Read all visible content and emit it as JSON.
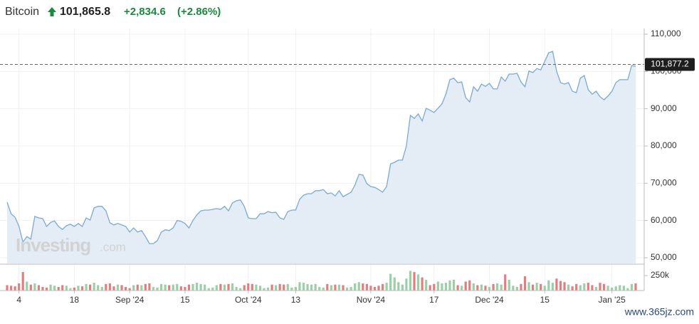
{
  "chart_data": {
    "type": "area",
    "title": "Bitcoin",
    "price": "101,865.8",
    "change": "+2,834.6",
    "change_pct": "(+2.86%)",
    "watermark_brand": "Investing",
    "watermark_suffix": ".com",
    "site_watermark": "www.365jz.com",
    "categories": [
      null,
      null,
      null,
      "4",
      null,
      null,
      null,
      null,
      null,
      null,
      null,
      null,
      null,
      null,
      null,
      null,
      null,
      "18",
      null,
      null,
      null,
      null,
      null,
      null,
      null,
      null,
      null,
      null,
      null,
      null,
      null,
      "Sep '24",
      null,
      null,
      null,
      null,
      null,
      null,
      null,
      null,
      null,
      null,
      null,
      null,
      null,
      "15",
      null,
      null,
      null,
      null,
      null,
      null,
      null,
      null,
      null,
      null,
      null,
      null,
      null,
      null,
      null,
      "Oct '24",
      null,
      null,
      null,
      null,
      null,
      null,
      null,
      null,
      null,
      null,
      null,
      "13",
      null,
      null,
      null,
      null,
      null,
      null,
      null,
      null,
      null,
      null,
      null,
      null,
      null,
      null,
      null,
      null,
      null,
      null,
      "Nov '24",
      null,
      null,
      null,
      null,
      null,
      null,
      null,
      null,
      null,
      null,
      null,
      null,
      null,
      null,
      null,
      "17",
      null,
      null,
      null,
      null,
      null,
      null,
      null,
      null,
      null,
      null,
      null,
      null,
      null,
      "Dec '24",
      null,
      null,
      null,
      null,
      null,
      null,
      null,
      null,
      null,
      null,
      null,
      null,
      null,
      "15",
      null,
      null,
      null,
      null,
      null,
      null,
      null,
      null,
      null,
      null,
      null,
      null,
      null,
      null,
      null,
      null,
      "Jan '25",
      null,
      null,
      null,
      null,
      null,
      null
    ],
    "series": [
      {
        "color": "#7aa9d6",
        "fill": "#e4edf6",
        "values": [
          64900,
          61800,
          60900,
          58400,
          54200,
          55700,
          55000,
          61100,
          60700,
          60500,
          58400,
          59500,
          59900,
          58400,
          57600,
          58600,
          59000,
          58400,
          59200,
          58400,
          60700,
          60100,
          63400,
          63800,
          63800,
          62600,
          59400,
          58800,
          59200,
          58800,
          58400,
          56900,
          58000,
          56900,
          57300,
          55700,
          53800,
          53800,
          54600,
          56900,
          57500,
          57300,
          58000,
          60000,
          59800,
          59200,
          58000,
          60000,
          61500,
          62600,
          62800,
          62800,
          63000,
          63200,
          63000,
          63800,
          62600,
          64700,
          65300,
          65500,
          63800,
          60700,
          60500,
          60500,
          61800,
          61800,
          62400,
          62100,
          62200,
          60700,
          60300,
          62400,
          62800,
          62800,
          65700,
          66800,
          67200,
          67200,
          68000,
          68000,
          68300,
          67200,
          67400,
          66600,
          68000,
          66400,
          67000,
          67600,
          69500,
          72400,
          72200,
          69900,
          69100,
          68900,
          68300,
          67600,
          69100,
          75200,
          75600,
          76200,
          76200,
          80000,
          88200,
          87400,
          88600,
          86700,
          90100,
          89600,
          89000,
          90100,
          91300,
          93900,
          97800,
          98200,
          97000,
          97200,
          93000,
          91800,
          95900,
          94700,
          96600,
          96000,
          96800,
          95300,
          95300,
          98500,
          97400,
          99300,
          99300,
          99500,
          97200,
          95900,
          100100,
          99700,
          100800,
          100400,
          102700,
          105000,
          105400,
          100100,
          97000,
          96600,
          97000,
          94700,
          94300,
          98200,
          98900,
          95100,
          93900,
          94700,
          93200,
          92400,
          93400,
          94700,
          97000,
          97800,
          97800,
          97800,
          101600,
          101400
        ]
      }
    ],
    "ylim": [
      48470,
      111530
    ],
    "yticks": [
      {
        "value": 50000,
        "label": "50,000"
      },
      {
        "value": 60000,
        "label": "60,000"
      },
      {
        "value": 70000,
        "label": "70,000"
      },
      {
        "value": 80000,
        "label": "80,000"
      },
      {
        "value": 90000,
        "label": "90,000"
      },
      {
        "value": 100000,
        "label": "100,000"
      },
      {
        "value": 110000,
        "label": "110,000"
      }
    ],
    "grid": true,
    "last_price": {
      "value": 101877.2,
      "label": "101,877.2"
    },
    "volume": {
      "up_color": "#9ccfa6",
      "down_color": "#e07f7f",
      "ylim": [
        0,
        430000
      ],
      "yticks": [
        {
          "value": 250000,
          "label": "250k"
        }
      ],
      "values": [
        90000,
        80000,
        70000,
        120000,
        310000,
        150000,
        100000,
        120000,
        90000,
        60000,
        50000,
        100000,
        80000,
        60000,
        90000,
        80000,
        40000,
        50000,
        80000,
        70000,
        110000,
        100000,
        130000,
        90000,
        60000,
        110000,
        120000,
        70000,
        100000,
        90000,
        60000,
        40000,
        90000,
        100000,
        90000,
        110000,
        120000,
        60000,
        50000,
        110000,
        100000,
        90000,
        100000,
        110000,
        70000,
        60000,
        100000,
        110000,
        130000,
        110000,
        100000,
        40000,
        50000,
        90000,
        110000,
        100000,
        110000,
        120000,
        60000,
        40000,
        90000,
        120000,
        110000,
        100000,
        80000,
        40000,
        50000,
        100000,
        90000,
        110000,
        100000,
        110000,
        50000,
        60000,
        140000,
        130000,
        110000,
        100000,
        110000,
        60000,
        50000,
        110000,
        90000,
        100000,
        100000,
        90000,
        50000,
        60000,
        120000,
        140000,
        120000,
        110000,
        80000,
        60000,
        80000,
        110000,
        130000,
        280000,
        220000,
        140000,
        100000,
        200000,
        330000,
        310000,
        270000,
        220000,
        180000,
        90000,
        110000,
        150000,
        120000,
        130000,
        170000,
        180000,
        90000,
        80000,
        150000,
        170000,
        120000,
        90000,
        100000,
        80000,
        60000,
        110000,
        120000,
        100000,
        270000,
        180000,
        80000,
        60000,
        110000,
        240000,
        140000,
        100000,
        130000,
        110000,
        80000,
        170000,
        130000,
        200000,
        160000,
        140000,
        100000,
        70000,
        110000,
        90000,
        120000,
        130000,
        90000,
        60000,
        130000,
        110000,
        80000,
        50000,
        70000,
        90000,
        80000,
        40000,
        110000,
        120000
      ]
    }
  }
}
